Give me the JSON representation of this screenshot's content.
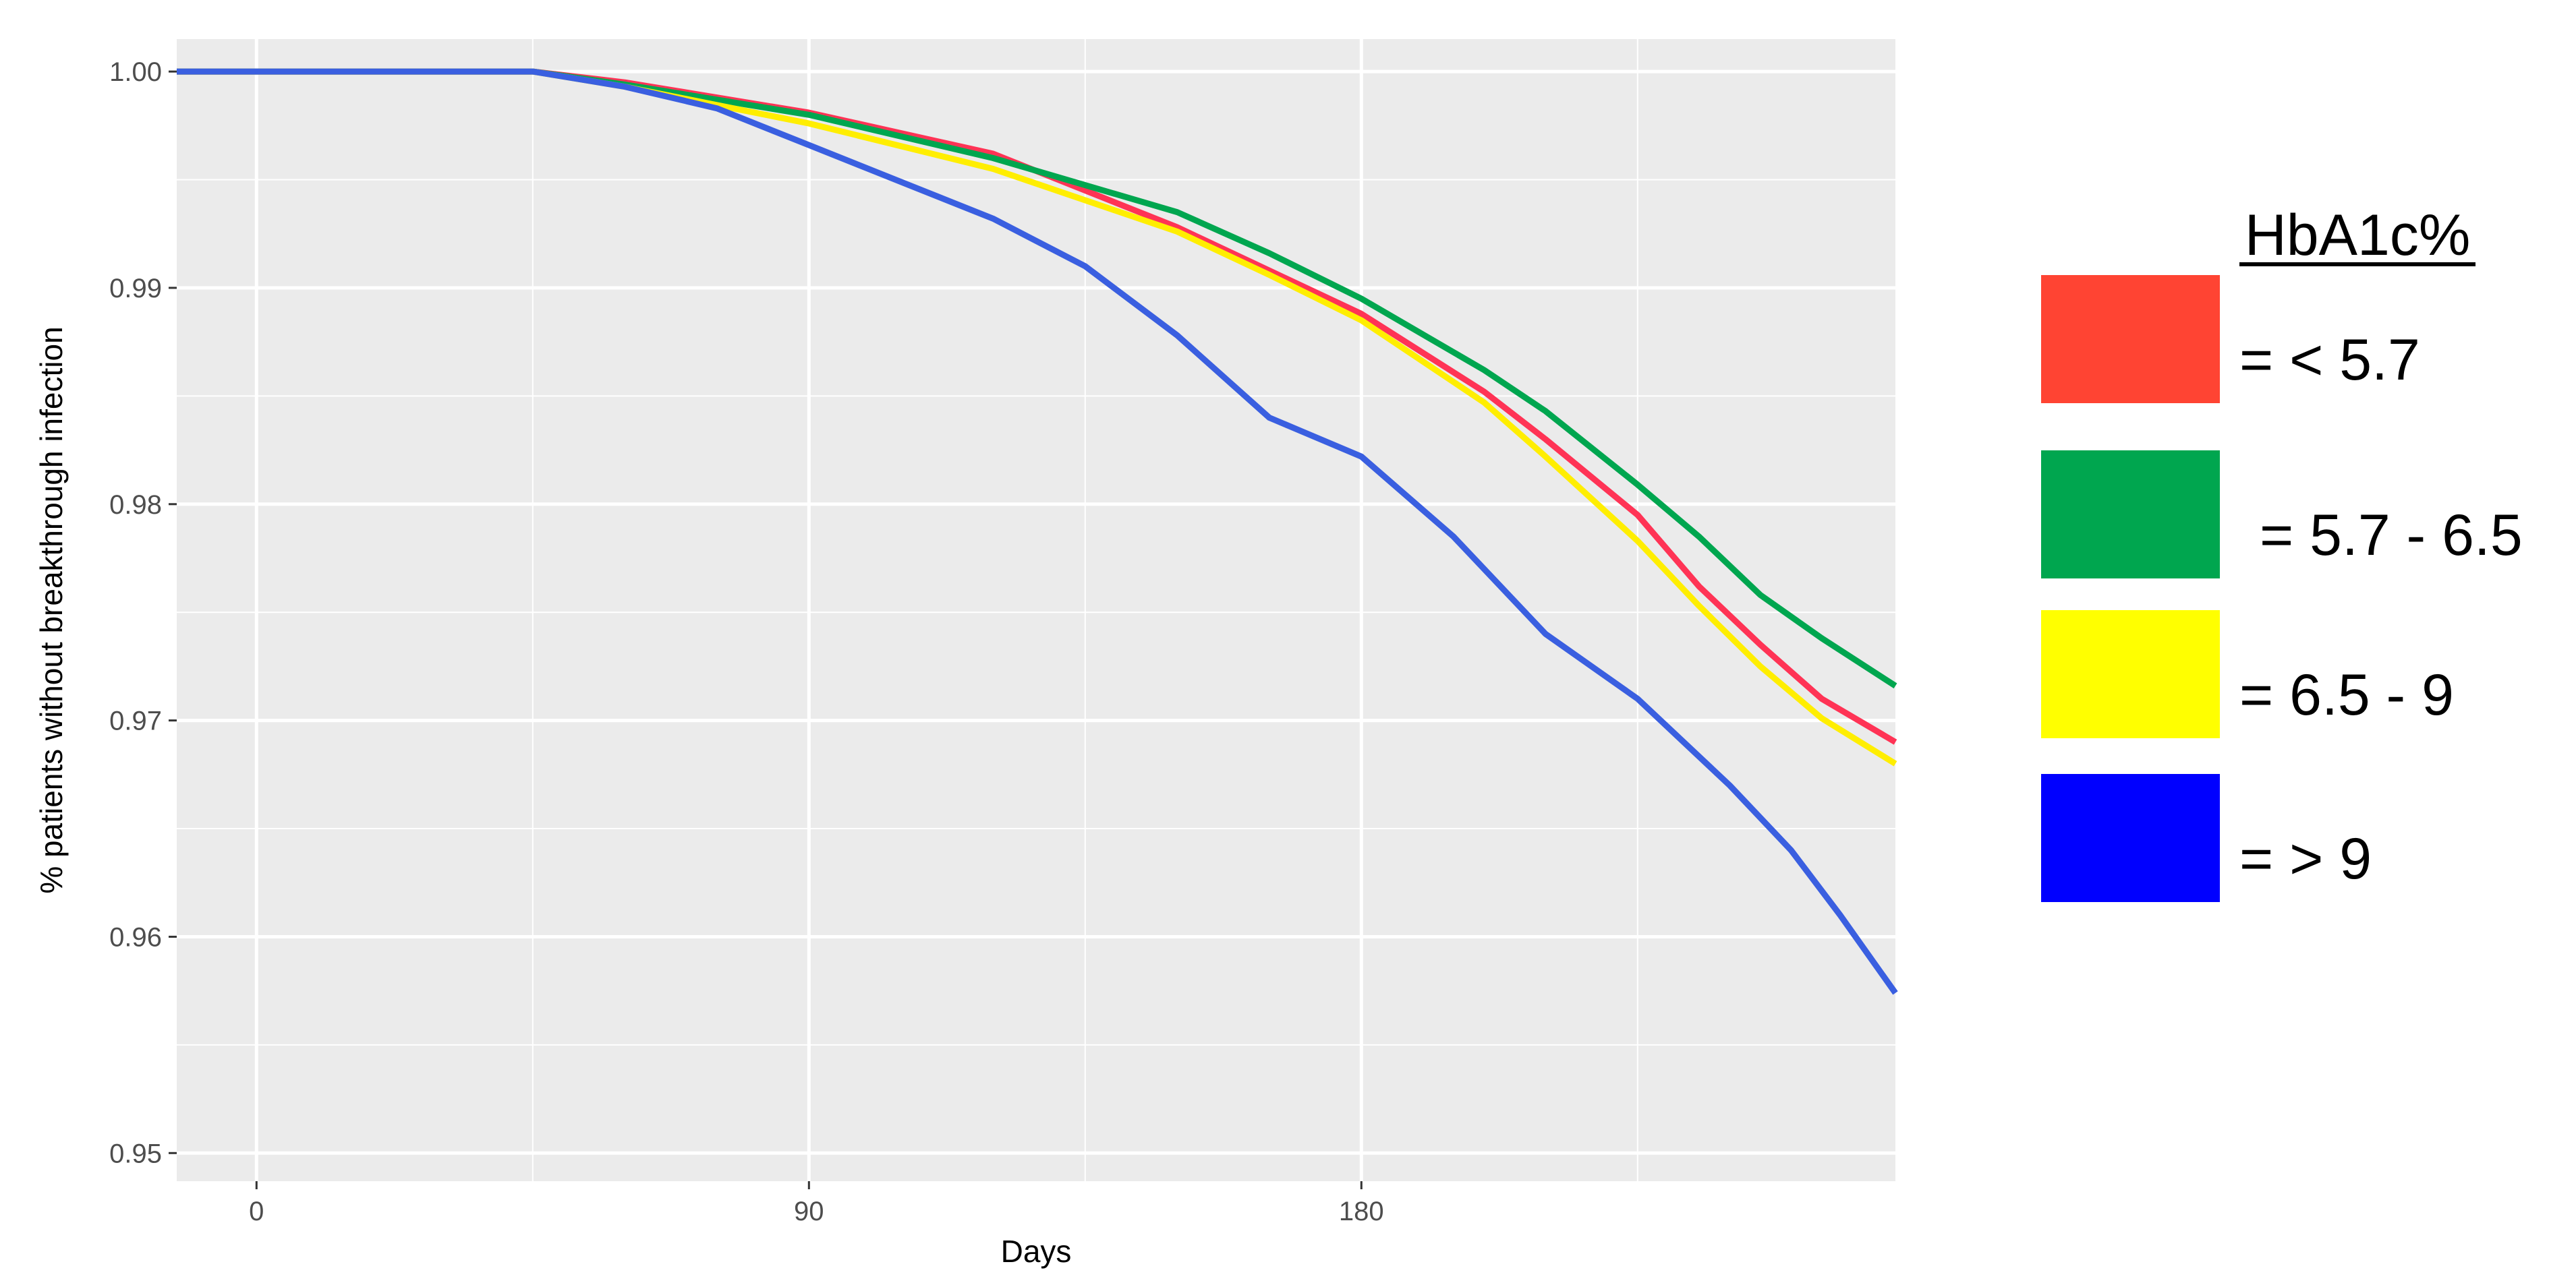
{
  "chart_data": {
    "type": "line",
    "title": "",
    "xlabel": "Days",
    "ylabel": "% patients without breakthrough infection",
    "xlim": [
      -13,
      267
    ],
    "ylim": [
      0.9487,
      1.0015
    ],
    "x_ticks": [
      0,
      90,
      180
    ],
    "x_tick_labels": [
      "0",
      "90",
      "180"
    ],
    "y_ticks": [
      0.95,
      0.96,
      0.97,
      0.98,
      0.99,
      1.0
    ],
    "y_tick_labels": [
      "0.95",
      "0.96",
      "0.97",
      "0.98",
      "0.99",
      "1.00"
    ],
    "grid": true,
    "background": "#ebebeb",
    "legend": {
      "title": "HbA1c%",
      "position": "right",
      "entries": [
        {
          "label": "= < 5.7",
          "color": "#ff4433"
        },
        {
          "label": "= 5.7 - 6.5",
          "color": "#00a64f"
        },
        {
          "label": "= 6.5 - 9",
          "color": "#ffff00"
        },
        {
          "label": "= > 9",
          "color": "#0000ff"
        }
      ]
    },
    "series": [
      {
        "name": "= < 5.7",
        "color": "#ff3355",
        "x": [
          -13,
          45,
          60,
          90,
          120,
          150,
          165,
          180,
          200,
          210,
          225,
          235,
          245,
          255,
          267
        ],
        "y": [
          1.0,
          1.0,
          0.9995,
          0.9981,
          0.9962,
          0.9928,
          0.9908,
          0.9888,
          0.9852,
          0.983,
          0.9795,
          0.9762,
          0.9735,
          0.971,
          0.969
        ]
      },
      {
        "name": "= 5.7 - 6.5",
        "color": "#00a64f",
        "x": [
          -13,
          45,
          60,
          90,
          120,
          150,
          165,
          180,
          200,
          210,
          225,
          235,
          245,
          255,
          267
        ],
        "y": [
          1.0,
          1.0,
          0.9994,
          0.998,
          0.996,
          0.9935,
          0.9916,
          0.9895,
          0.9862,
          0.9843,
          0.9809,
          0.9785,
          0.9758,
          0.9738,
          0.9716
        ]
      },
      {
        "name": "= 6.5 - 9",
        "color": "#ffee00",
        "x": [
          -13,
          45,
          60,
          90,
          120,
          150,
          165,
          180,
          200,
          210,
          225,
          235,
          245,
          255,
          267
        ],
        "y": [
          1.0,
          1.0,
          0.9993,
          0.9976,
          0.9955,
          0.9926,
          0.9906,
          0.9885,
          0.9847,
          0.9822,
          0.9783,
          0.9753,
          0.9725,
          0.9701,
          0.968
        ]
      },
      {
        "name": "= > 9",
        "color": "#3a5fe0",
        "x": [
          -13,
          45,
          60,
          75,
          90,
          105,
          120,
          135,
          150,
          165,
          180,
          195,
          210,
          225,
          240,
          250,
          258,
          267
        ],
        "y": [
          1.0,
          1.0,
          0.9993,
          0.9983,
          0.9966,
          0.9949,
          0.9932,
          0.991,
          0.9878,
          0.984,
          0.9822,
          0.9785,
          0.974,
          0.971,
          0.967,
          0.964,
          0.961,
          0.9574
        ]
      }
    ]
  }
}
